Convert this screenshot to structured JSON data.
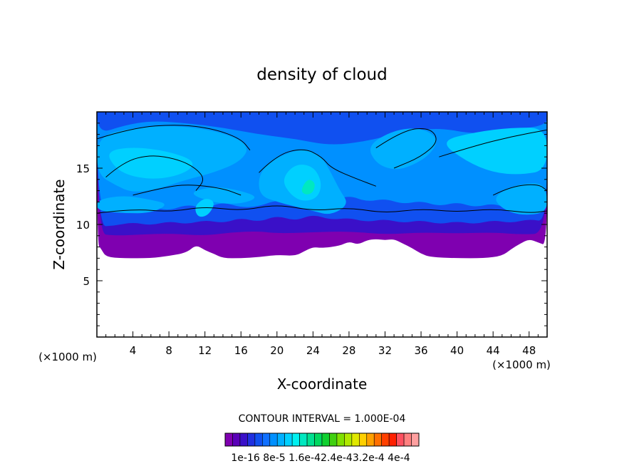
{
  "chart_data": {
    "type": "heatmap",
    "title": "density of cloud",
    "xlabel": "X-coordinate",
    "ylabel": "Z-coordinate",
    "x_unit": "(×1000 m)",
    "x_unit_right": "(×1000 m)",
    "xlim": [
      0,
      50
    ],
    "ylim": [
      0,
      20
    ],
    "x_ticks": [
      4,
      8,
      12,
      16,
      20,
      24,
      28,
      32,
      36,
      40,
      44,
      48
    ],
    "y_ticks": [
      5,
      10,
      15
    ],
    "contour_interval_label": "CONTOUR INTERVAL = 1.000E-04",
    "colorbar_labels": [
      "1e-16",
      "8e-5",
      "1.6e-4",
      "2.4e-4",
      "3.2e-4",
      "4e-4"
    ],
    "colorbar_label_text": "1e-16 8e-5 1.6e-42.4e-43.2e-4 4e-4",
    "colorbar_colors": [
      "#7f00b0",
      "#5a00b8",
      "#3a10c8",
      "#2030e0",
      "#1050f0",
      "#1070ff",
      "#0090ff",
      "#00b0ff",
      "#00d0ff",
      "#00f0f0",
      "#00e8c0",
      "#00e090",
      "#00d860",
      "#10d030",
      "#40d010",
      "#80e000",
      "#b0e800",
      "#e0e800",
      "#ffd000",
      "#ffa000",
      "#ff7000",
      "#ff4000",
      "#ff2000",
      "#ff5060",
      "#ff8080",
      "#ffa0a0"
    ],
    "field_colors": {
      "level_0": "#7f00b0",
      "level_1": "#3a10c8",
      "level_2": "#1050f0",
      "level_3": "#0090ff",
      "level_4": "#00b0ff",
      "level_5": "#00d0ff",
      "level_6": "#00e8c0"
    },
    "cloud_extent_z": [
      7,
      20
    ],
    "bright_core": {
      "x": 23.5,
      "z": 13.5
    }
  }
}
